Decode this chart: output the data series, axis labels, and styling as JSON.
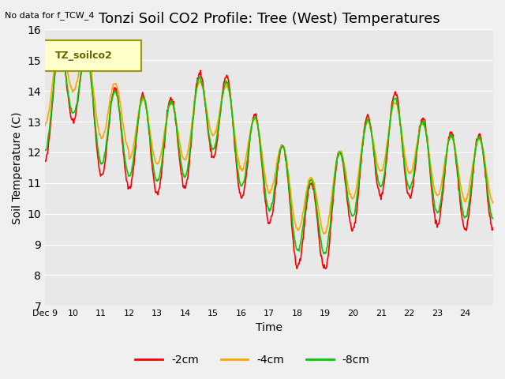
{
  "title": "Tonzi Soil CO2 Profile: Tree (West) Temperatures",
  "subtitle": "No data for f_TCW_4",
  "ylabel": "Soil Temperature (C)",
  "xlabel": "Time",
  "ylim": [
    7.0,
    16.0
  ],
  "yticks": [
    7.0,
    8.0,
    9.0,
    10.0,
    11.0,
    12.0,
    13.0,
    14.0,
    15.0,
    16.0
  ],
  "xtick_labels": [
    "Dec 9",
    "Dec 10",
    "Dec 11",
    "Dec 12",
    "Dec 13",
    "Dec 14",
    "Dec 15",
    "Dec 16",
    "Dec 17",
    "Dec 18",
    "Dec 19",
    "Dec 20",
    "Dec 21",
    "Dec 22",
    "Dec 23",
    "Dec 24"
  ],
  "legend_label": "TZ_soilco2",
  "line_colors": [
    "#ff0000",
    "#ffa500",
    "#00cc00"
  ],
  "line_labels": [
    "-2cm",
    "-4cm",
    "-8cm"
  ],
  "fig_bg_color": "#f0f0f0",
  "plot_bg_color": "#e8e8e8",
  "grid_color": "#ffffff",
  "title_fontsize": 13,
  "label_fontsize": 10
}
